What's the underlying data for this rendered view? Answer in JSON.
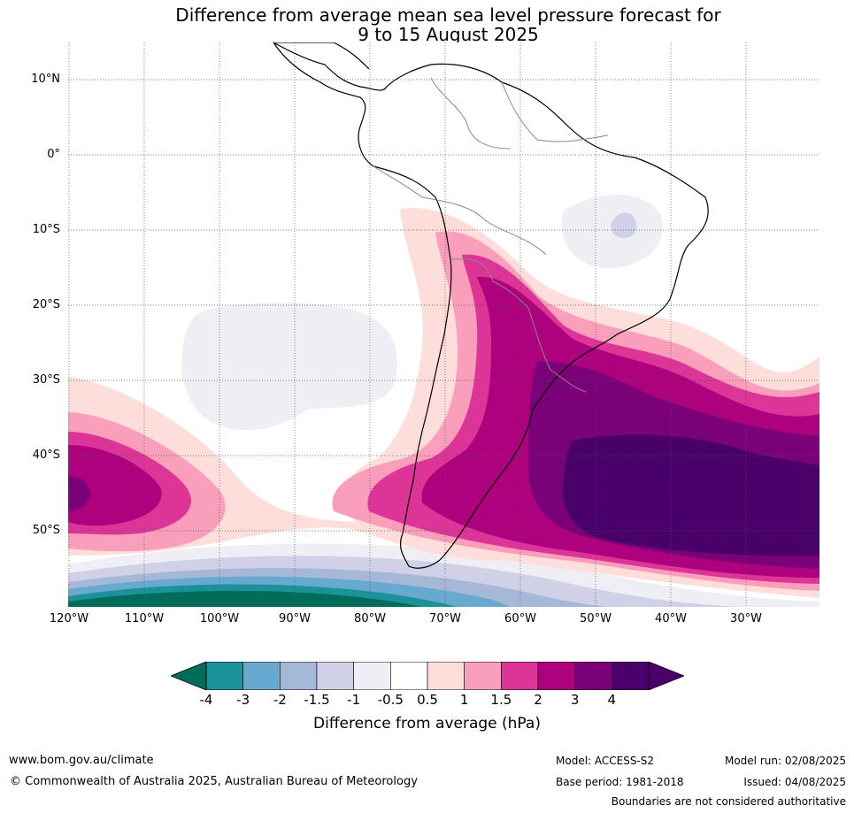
{
  "title": {
    "line1": "Difference from average mean sea level pressure forecast for",
    "line2": "9 to 15 August 2025"
  },
  "axes": {
    "lat_labels": [
      "10°N",
      "0°",
      "10°S",
      "20°S",
      "30°S",
      "40°S",
      "50°S"
    ],
    "lon_labels": [
      "120°W",
      "110°W",
      "100°W",
      "90°W",
      "80°W",
      "70°W",
      "60°W",
      "50°W",
      "40°W",
      "30°W"
    ]
  },
  "colorbar": {
    "label": "Difference from average (hPa)",
    "ticks": [
      "-4",
      "-3",
      "-2",
      "-1.5",
      "-1",
      "-0.5",
      "0.5",
      "1",
      "1.5",
      "2",
      "3",
      "4"
    ],
    "colors": [
      "#1b9299",
      "#67a9cf",
      "#a6b8d8",
      "#d0d1e6",
      "#f0eef5",
      "#ffffff",
      "#fddedb",
      "#f99fbb",
      "#dd3497",
      "#ae017e",
      "#7a0177",
      "#49006a"
    ],
    "under_color": "#016c59",
    "over_color": "#49006a"
  },
  "footer": {
    "url": "www.bom.gov.au/climate",
    "copyright": "© Commonwealth of Australia 2025, Australian Bureau of Meteorology",
    "model": "Model: ACCESS-S2",
    "base_period": "Base period: 1981-2018",
    "model_run": "Model run: 02/08/2025",
    "issued": "Issued: 04/08/2025",
    "boundaries": "Boundaries are not considered authoritative"
  }
}
